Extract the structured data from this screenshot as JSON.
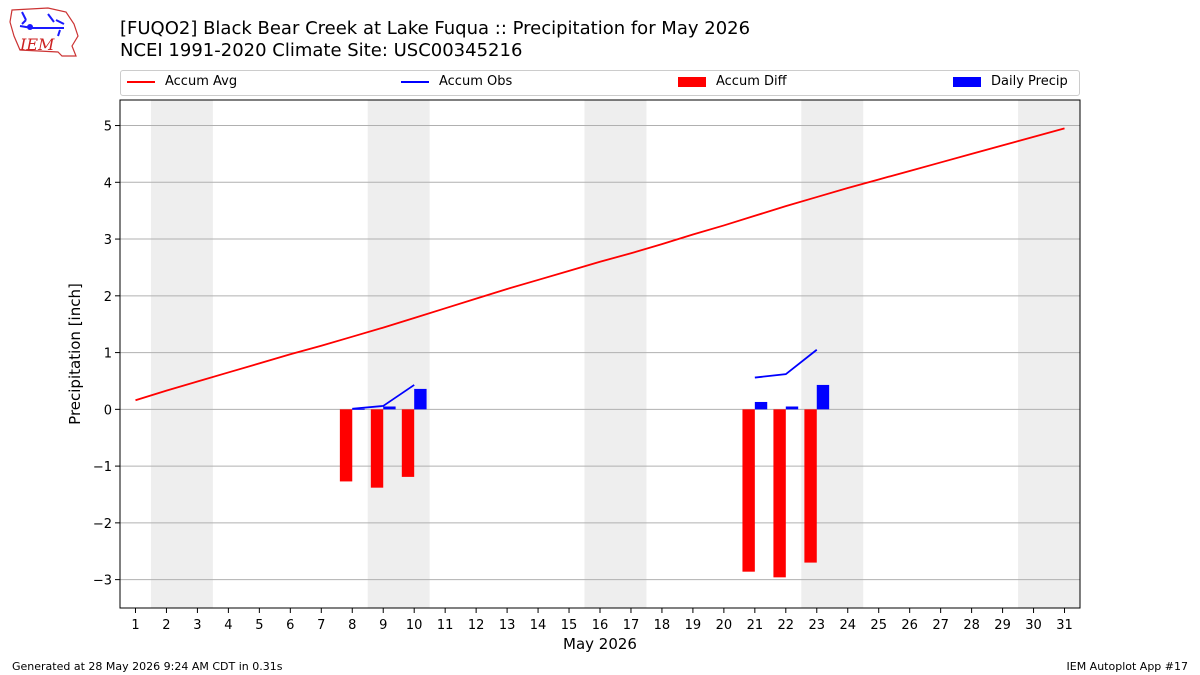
{
  "header": {
    "title_line1": "[FUQO2] Black Bear Creek at Lake Fuqua :: Precipitation for May 2026",
    "title_line2": "NCEI 1991-2020 Climate Site: USC00345216",
    "logo_text": "IEM"
  },
  "legend": {
    "items": [
      {
        "label": "Accum Avg",
        "color": "#ff0000",
        "kind": "line"
      },
      {
        "label": "Accum Obs",
        "color": "#0000ff",
        "kind": "line"
      },
      {
        "label": "Accum Diff",
        "color": "#ff0000",
        "kind": "bar"
      },
      {
        "label": "Daily Precip",
        "color": "#0000ff",
        "kind": "bar"
      }
    ]
  },
  "footer": {
    "left": "Generated at 28 May 2026 9:24 AM CDT in 0.31s",
    "right": "IEM Autoplot App #17"
  },
  "chart_data": {
    "type": "bar",
    "xlabel": "May 2026",
    "ylabel": "Precipitation [inch]",
    "xlim": [
      0.5,
      31.5
    ],
    "ylim": [
      -3.5,
      5.45
    ],
    "xticks": [
      1,
      2,
      3,
      4,
      5,
      6,
      7,
      8,
      9,
      10,
      11,
      12,
      13,
      14,
      15,
      16,
      17,
      18,
      19,
      20,
      21,
      22,
      23,
      24,
      25,
      26,
      27,
      28,
      29,
      30,
      31
    ],
    "yticks": [
      -3,
      -2,
      -1,
      0,
      1,
      2,
      3,
      4,
      5
    ],
    "grid": "horizontal",
    "weekend_days": [
      2,
      3,
      9,
      10,
      16,
      17,
      23,
      24,
      30,
      31
    ],
    "weekend_color": "#eeeeee",
    "series": [
      {
        "name": "Accum Avg",
        "kind": "line",
        "color": "#ff0000",
        "x": [
          1,
          2,
          3,
          4,
          5,
          6,
          7,
          8,
          9,
          10,
          11,
          12,
          13,
          14,
          15,
          16,
          17,
          18,
          19,
          20,
          21,
          22,
          23,
          24,
          25,
          26,
          27,
          28,
          29,
          30,
          31
        ],
        "values": [
          0.16,
          0.33,
          0.49,
          0.65,
          0.81,
          0.97,
          1.12,
          1.28,
          1.44,
          1.61,
          1.78,
          1.95,
          2.12,
          2.28,
          2.44,
          2.6,
          2.75,
          2.91,
          3.08,
          3.24,
          3.41,
          3.58,
          3.74,
          3.9,
          4.05,
          4.2,
          4.35,
          4.5,
          4.65,
          4.8,
          4.95
        ]
      },
      {
        "name": "Accum Obs",
        "kind": "line",
        "color": "#0000ff",
        "segments": [
          {
            "x": [
              8,
              9,
              10
            ],
            "values": [
              0.01,
              0.06,
              0.43
            ]
          },
          {
            "x": [
              21,
              22,
              23
            ],
            "values": [
              0.56,
              0.62,
              1.05
            ]
          }
        ]
      },
      {
        "name": "Accum Diff",
        "kind": "bar",
        "color": "#ff0000",
        "offset": -0.2,
        "x": [
          8,
          9,
          10,
          21,
          22,
          23
        ],
        "values": [
          -1.27,
          -1.38,
          -1.19,
          -2.86,
          -2.96,
          -2.7
        ]
      },
      {
        "name": "Daily Precip",
        "kind": "bar",
        "color": "#0000ff",
        "offset": 0.2,
        "x": [
          8,
          9,
          10,
          21,
          22,
          23
        ],
        "values": [
          0.01,
          0.05,
          0.36,
          0.13,
          0.05,
          0.43
        ]
      }
    ]
  }
}
